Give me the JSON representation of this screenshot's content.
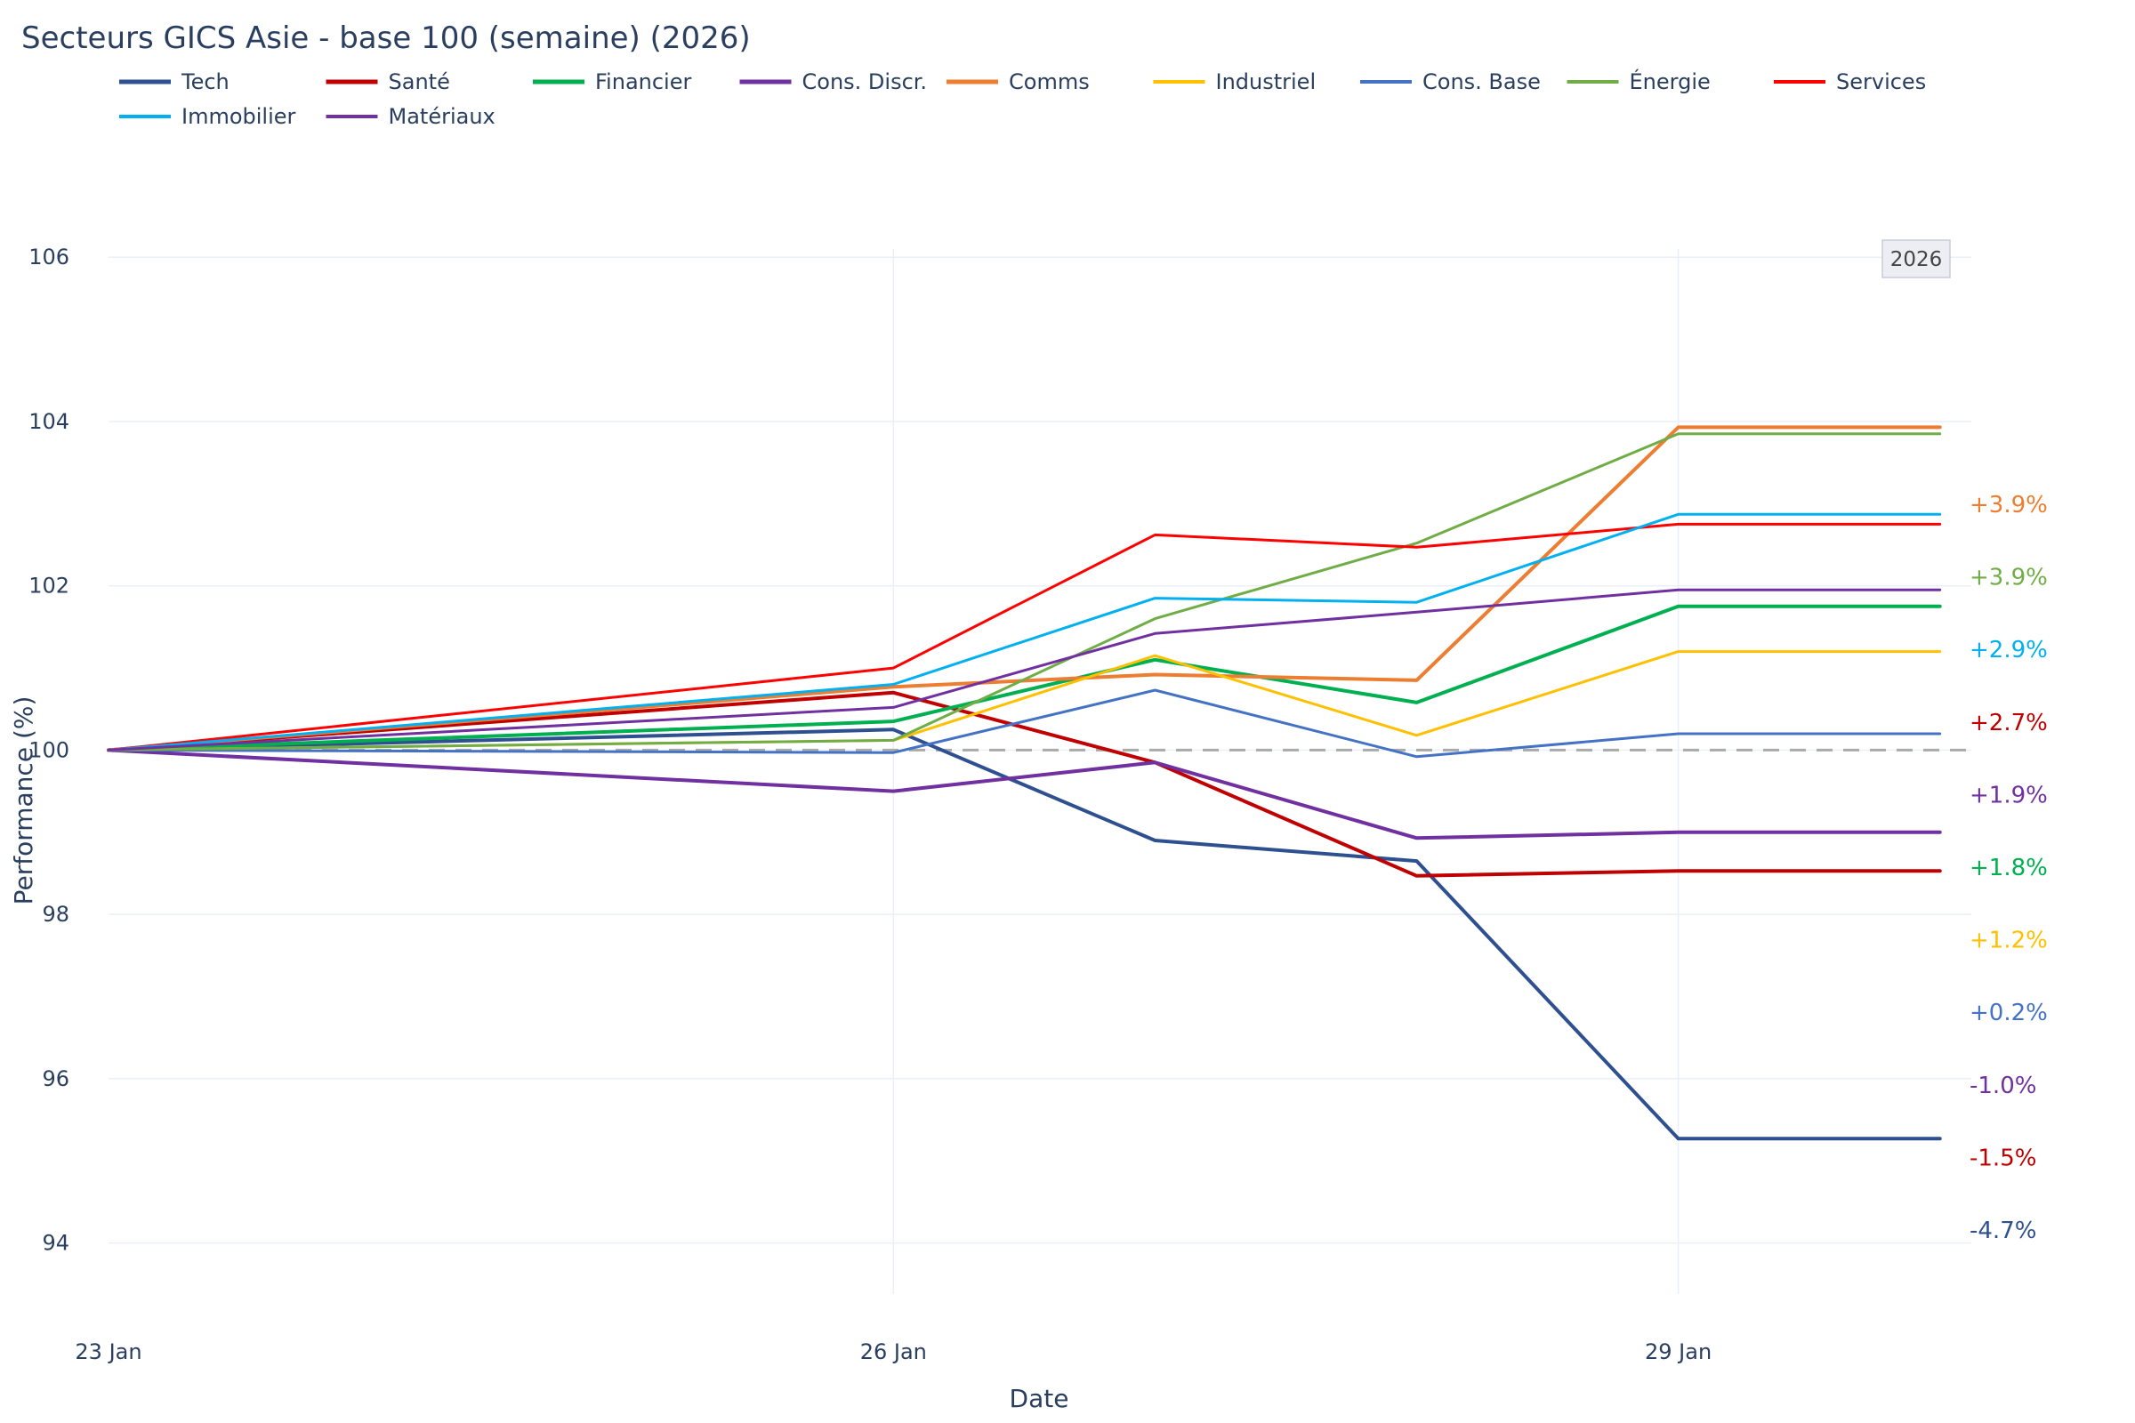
{
  "chart_data": {
    "type": "line",
    "title": "Secteurs GICS Asie - base 100 (semaine) (2026)",
    "xlabel": "Date",
    "ylabel": "Performance (%)",
    "year_badge": "2026",
    "x": [
      0,
      3,
      4,
      5,
      6,
      7
    ],
    "x_tick_values": [
      0,
      3,
      6
    ],
    "x_tick_labels": [
      "23 Jan",
      "26 Jan",
      "29 Jan"
    ],
    "xlim": [
      0,
      7.12
    ],
    "ylim": [
      93.0,
      106.1
    ],
    "y_ticks": [
      94,
      96,
      98,
      100,
      102,
      104,
      106
    ],
    "y_tick_labels": [
      "94",
      "96",
      "98",
      "100",
      "102",
      "104",
      "106"
    ],
    "baseline": 100,
    "series": [
      {
        "name": "Tech",
        "color": "#2e5090",
        "width": 4,
        "values": [
          100,
          100.25,
          98.9,
          98.65,
          95.27,
          95.27
        ]
      },
      {
        "name": "Santé",
        "color": "#c00000",
        "width": 4,
        "values": [
          100,
          100.7,
          99.85,
          98.47,
          98.53,
          98.53
        ]
      },
      {
        "name": "Financier",
        "color": "#00b050",
        "width": 4,
        "values": [
          100,
          100.35,
          101.1,
          100.58,
          101.75,
          101.75
        ]
      },
      {
        "name": "Cons. Discr.",
        "color": "#7030a0",
        "width": 4,
        "values": [
          100,
          99.5,
          99.85,
          98.93,
          99.0,
          99.0
        ]
      },
      {
        "name": "Comms",
        "color": "#ed7d31",
        "width": 4,
        "values": [
          100,
          100.77,
          100.92,
          100.85,
          103.93,
          103.93
        ]
      },
      {
        "name": "Industriel",
        "color": "#ffc000",
        "width": 3,
        "values": [
          100,
          100.12,
          101.15,
          100.18,
          101.2,
          101.2
        ]
      },
      {
        "name": "Cons. Base",
        "color": "#4472c4",
        "width": 3,
        "values": [
          100,
          99.97,
          100.73,
          99.92,
          100.2,
          100.2
        ]
      },
      {
        "name": "Énergie",
        "color": "#70ad47",
        "width": 3,
        "values": [
          100,
          100.12,
          101.6,
          102.52,
          103.85,
          103.85
        ]
      },
      {
        "name": "Services",
        "color": "#ff0000",
        "width": 3,
        "values": [
          100,
          101.0,
          102.62,
          102.47,
          102.75,
          102.75
        ]
      },
      {
        "name": "Immobilier",
        "color": "#00b0f0",
        "width": 3,
        "values": [
          100,
          100.8,
          101.85,
          101.8,
          102.87,
          102.87
        ]
      },
      {
        "name": "Matériaux",
        "color": "#7030a0",
        "width": 3,
        "values": [
          100,
          100.52,
          101.42,
          101.68,
          101.95,
          101.95
        ]
      }
    ],
    "end_labels": [
      {
        "text": "+3.9%",
        "color": "#ed7d31"
      },
      {
        "text": "+3.9%",
        "color": "#70ad47"
      },
      {
        "text": "+2.9%",
        "color": "#00b0f0"
      },
      {
        "text": "+2.7%",
        "color": "#c00000"
      },
      {
        "text": "+1.9%",
        "color": "#7030a0"
      },
      {
        "text": "+1.8%",
        "color": "#00b050"
      },
      {
        "text": "+1.2%",
        "color": "#ffc000"
      },
      {
        "text": "+0.2%",
        "color": "#4472c4"
      },
      {
        "text": "-1.0%",
        "color": "#7030a0"
      },
      {
        "text": "-1.5%",
        "color": "#c00000"
      },
      {
        "text": "-4.7%",
        "color": "#2e5090"
      }
    ]
  }
}
